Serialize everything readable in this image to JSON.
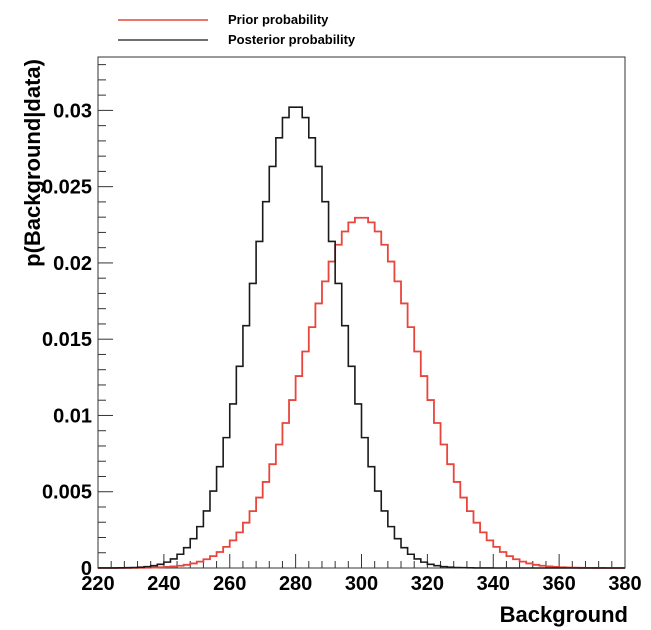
{
  "chart_data": {
    "type": "line",
    "step": true,
    "title": "",
    "xlabel": "Background",
    "ylabel": "p(Background|data)",
    "xlim": [
      220,
      380
    ],
    "ylim": [
      0,
      0.0335
    ],
    "x_ticks": [
      220,
      240,
      260,
      280,
      300,
      320,
      340,
      360,
      380
    ],
    "x_tick_labels": [
      "220",
      "240",
      "260",
      "280",
      "300",
      "320",
      "340",
      "360",
      "380"
    ],
    "y_ticks": [
      0,
      0.005,
      0.01,
      0.015,
      0.02,
      0.025,
      0.03
    ],
    "y_tick_labels": [
      "0",
      "0.005",
      "0.01",
      "0.015",
      "0.02",
      "0.025",
      "0.03"
    ],
    "bin_width": 2,
    "grid": false,
    "legend_position": "top-left-outside",
    "series": [
      {
        "name": "Prior probability",
        "color": "#e8453c",
        "distribution": "gaussian",
        "mean": 300,
        "sigma": 17.3,
        "peak": 0.023
      },
      {
        "name": "Posterior probability",
        "color": "#1a1a1a",
        "distribution": "gaussian",
        "mean": 280,
        "sigma": 13.2,
        "peak": 0.0303
      }
    ]
  }
}
